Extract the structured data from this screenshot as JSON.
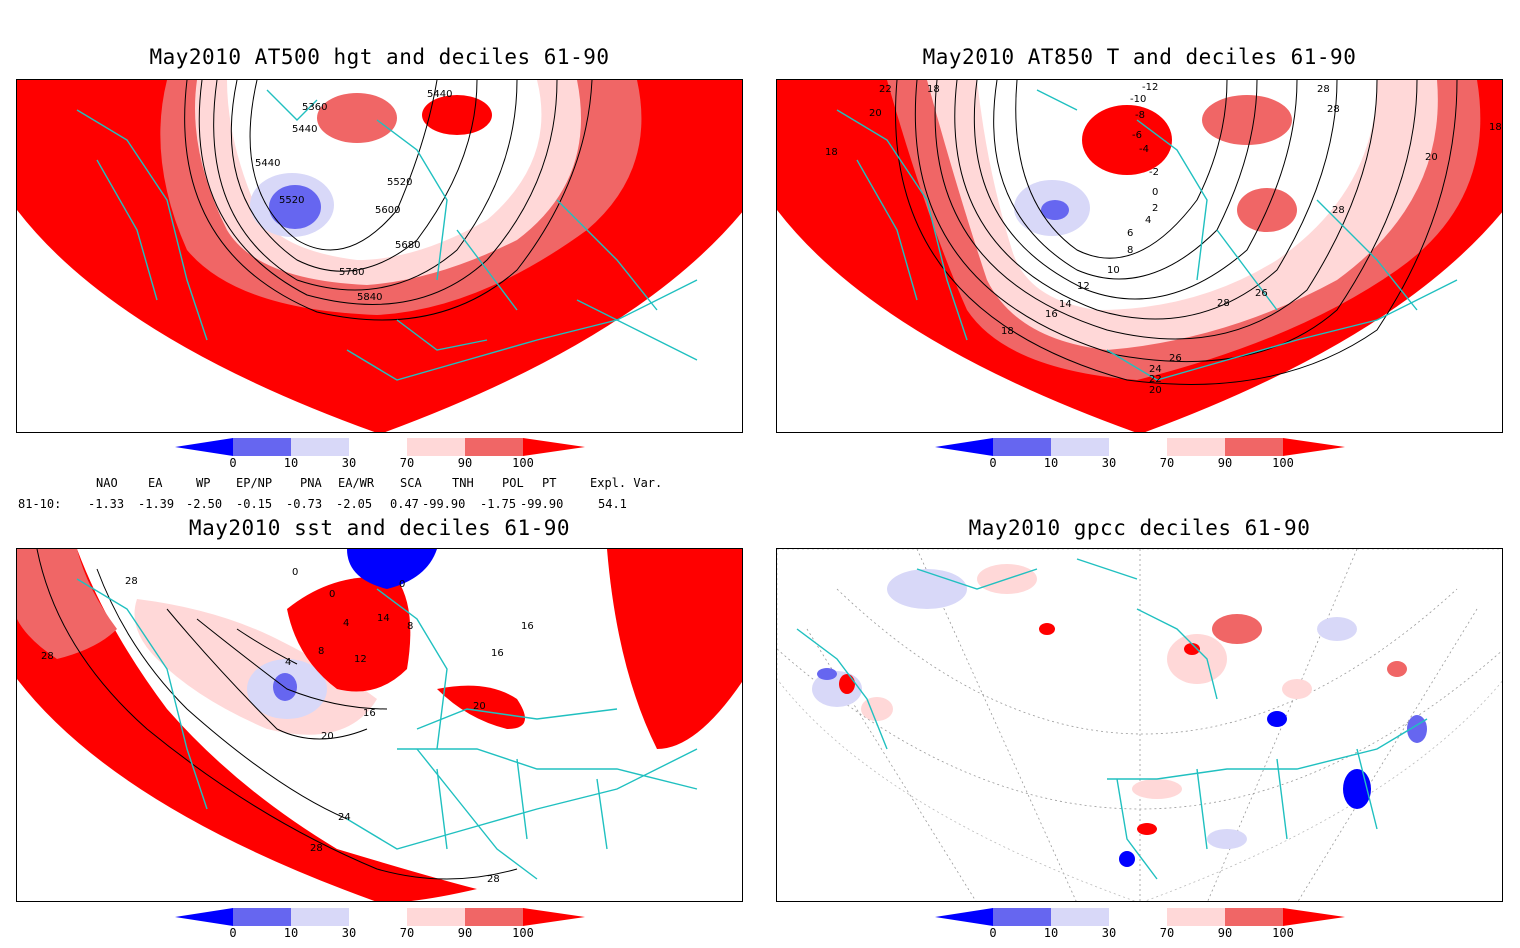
{
  "panels": [
    {
      "title": "May2010 AT500 hgt and deciles 61-90"
    },
    {
      "title": "May2010 AT850 T and deciles 61-90"
    },
    {
      "title": "May2010 sst and deciles 61-90"
    },
    {
      "title": "May2010 gpcc deciles 61-90"
    }
  ],
  "colorbar": {
    "ticks": [
      "0",
      "10",
      "30",
      "70",
      "90",
      "100"
    ],
    "colors": [
      "#0000ff",
      "#6666f0",
      "#d8d8f8",
      "#ffffff",
      "#ffd8d8",
      "#f06666",
      "#ff0000"
    ]
  },
  "contour_labels": {
    "at500": [
      "5360",
      "5440",
      "5440",
      "5440",
      "5520",
      "5520",
      "5600",
      "5680",
      "5760",
      "5840"
    ],
    "at850": [
      "-12",
      "-10",
      "-8",
      "-6",
      "-4",
      "-2",
      "0",
      "2",
      "4",
      "6",
      "8",
      "10",
      "12",
      "14",
      "16",
      "18",
      "18",
      "20",
      "22",
      "18",
      "28",
      "28",
      "28",
      "26",
      "28",
      "26",
      "24",
      "22",
      "20",
      "20",
      "18"
    ],
    "sst": [
      "28",
      "28",
      "0",
      "0",
      "0",
      "4",
      "4",
      "8",
      "8",
      "12",
      "14",
      "16",
      "16",
      "16",
      "20",
      "20",
      "24",
      "28",
      "28"
    ]
  },
  "indices": {
    "header": [
      "NAO",
      "EA",
      "WP",
      "EP/NP",
      "PNA",
      "EA/WR",
      "SCA",
      "TNH",
      "POL",
      "PT",
      "Expl. Var."
    ],
    "row_label": "81-10:",
    "values": [
      "-1.33",
      "-1.39",
      "-2.50",
      "-0.15",
      "-0.73",
      "-2.05",
      "0.47",
      "-99.90",
      "-1.75",
      "-99.90",
      "54.1"
    ]
  }
}
